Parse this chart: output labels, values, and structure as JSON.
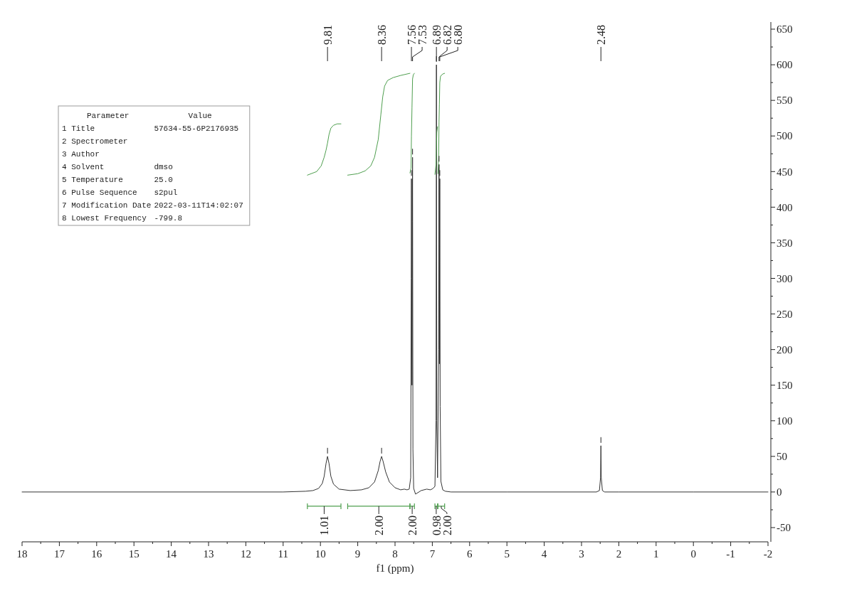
{
  "chart_data": [
    {
      "type": "line",
      "xlabel": "f1 (ppm)",
      "xlim": [
        18,
        -2
      ],
      "ylim": [
        -70,
        660
      ],
      "xticks": [
        18,
        {
          "value": 17.5,
          "label": null
        },
        17,
        {
          "value": 16.5,
          "label": null
        },
        16,
        {
          "value": 15.5,
          "label": null
        },
        15,
        {
          "value": 14.5,
          "label": null
        },
        14,
        {
          "value": 13.5,
          "label": null
        },
        13,
        {
          "value": 12.5,
          "label": null
        },
        12,
        {
          "value": 11.5,
          "label": null
        },
        11,
        {
          "value": 10.5,
          "label": null
        },
        10,
        {
          "value": 9.5,
          "label": null
        },
        9,
        {
          "value": 8.5,
          "label": null
        },
        8,
        {
          "value": 7.5,
          "label": null
        },
        7,
        {
          "value": 6.5,
          "label": null
        },
        6,
        {
          "value": 5.5,
          "label": null
        },
        5,
        {
          "value": 4.5,
          "label": null
        },
        4,
        {
          "value": 3.5,
          "label": null
        },
        3,
        {
          "value": 2.5,
          "label": null
        },
        2,
        {
          "value": 1.5,
          "label": null
        },
        1,
        {
          "value": 0.5,
          "label": null
        },
        0,
        {
          "value": -0.5,
          "label": null
        },
        -1,
        {
          "value": -1.5,
          "label": null
        },
        -2
      ],
      "yticks": [
        -50,
        {
          "value": -25,
          "label": null
        },
        0,
        {
          "value": 25,
          "label": null
        },
        50,
        {
          "value": 75,
          "label": null
        },
        100,
        {
          "value": 125,
          "label": null
        },
        150,
        {
          "value": 175,
          "label": null
        },
        200,
        {
          "value": 225,
          "label": null
        },
        250,
        {
          "value": 275,
          "label": null
        },
        300,
        {
          "value": 325,
          "label": null
        },
        350,
        {
          "value": 375,
          "label": null
        },
        400,
        {
          "value": 425,
          "label": null
        },
        450,
        {
          "value": 475,
          "label": null
        },
        500,
        {
          "value": 525,
          "label": null
        },
        550,
        {
          "value": 575,
          "label": null
        },
        600,
        {
          "value": 625,
          "label": null
        },
        650
      ],
      "series": [
        {
          "color": "#333333",
          "x": [
            18,
            11,
            10.4,
            10.2,
            10.05,
            9.95,
            9.9,
            9.85,
            9.81,
            9.77,
            9.72,
            9.65,
            9.5,
            9.2,
            8.9,
            8.7,
            8.55,
            8.45,
            8.4,
            8.36,
            8.32,
            8.25,
            8.15,
            8.0,
            7.85,
            7.75,
            7.68,
            7.62,
            7.58,
            7.565,
            7.56,
            7.545,
            7.535,
            7.53,
            7.52,
            7.5,
            7.45,
            7.3,
            7.15,
            7.05,
            6.98,
            6.93,
            6.9,
            6.89,
            6.88,
            6.86,
            6.83,
            6.82,
            6.81,
            6.8,
            6.79,
            6.77,
            6.72,
            6.65,
            6.5,
            5,
            3,
            2.6,
            2.52,
            2.49,
            2.48,
            2.47,
            2.44,
            2.38,
            2,
            0,
            -2
          ],
          "values": [
            0,
            0,
            1,
            2,
            5,
            12,
            22,
            40,
            50,
            40,
            22,
            11,
            4,
            2,
            3,
            6,
            14,
            30,
            43,
            50,
            43,
            28,
            14,
            6,
            3,
            4,
            3,
            4,
            20,
            300,
            440,
            150,
            380,
            470,
            60,
            5,
            -3,
            2,
            4,
            3,
            5,
            8,
            100,
            600,
            100,
            20,
            200,
            460,
            180,
            440,
            120,
            15,
            3,
            1,
            0,
            0,
            0,
            0,
            2,
            20,
            65,
            20,
            2,
            0,
            0,
            0,
            0
          ]
        },
        {
          "color": "#4f9f4f",
          "x": [
            10.35,
            10.1,
            9.98,
            9.9,
            9.85,
            9.81,
            9.77,
            9.72,
            9.65,
            9.55,
            9.45
          ],
          "values": [
            445,
            450,
            458,
            470,
            480,
            490,
            502,
            511,
            515,
            517,
            517
          ]
        },
        {
          "color": "#4f9f4f",
          "x": [
            9.27,
            9.0,
            8.8,
            8.65,
            8.55,
            8.45,
            8.38,
            8.33,
            8.28,
            8.2,
            8.05,
            7.85,
            7.6
          ],
          "values": [
            445,
            447,
            451,
            458,
            470,
            495,
            530,
            555,
            570,
            578,
            582,
            585,
            588
          ]
        },
        {
          "color": "#4f9f4f",
          "x": [
            7.6,
            7.57,
            7.56,
            7.545,
            7.53,
            7.51,
            7.48
          ],
          "values": [
            448,
            455,
            500,
            540,
            580,
            586,
            588
          ]
        },
        {
          "color": "#4f9f4f",
          "x": [
            6.93,
            6.9,
            6.89,
            6.88,
            6.86
          ],
          "values": [
            446,
            460,
            480,
            505,
            513
          ]
        },
        {
          "color": "#4f9f4f",
          "x": [
            6.85,
            6.83,
            6.82,
            6.81,
            6.8,
            6.78,
            6.72,
            6.67
          ],
          "values": [
            447,
            470,
            520,
            545,
            575,
            584,
            587,
            588
          ]
        }
      ],
      "annotations": [
        {
          "text": "9.81",
          "x": 9.81
        },
        {
          "text": "8.36",
          "x": 8.36
        },
        {
          "text": "7.56",
          "x": 7.56
        },
        {
          "text": "7.53",
          "x": 7.53
        },
        {
          "text": "6.89",
          "x": 6.89
        },
        {
          "text": "6.82",
          "x": 6.82
        },
        {
          "text": "6.80",
          "x": 6.8
        },
        {
          "text": "2.48",
          "x": 2.48
        },
        "1.01",
        "2.00",
        "2.00",
        "0.98",
        "2.00"
      ]
    },
    {
      "type": "other",
      "categories": [
        "Parameter",
        "Value"
      ],
      "cell_labels": [
        [
          "1 Title",
          "57634-55-6P2176935"
        ],
        [
          "2 Spectrometer",
          null
        ],
        [
          "3 Author",
          null
        ],
        [
          "4 Solvent",
          "dmso"
        ],
        [
          "5 Temperature",
          "25.0"
        ],
        [
          "6 Pulse Sequence",
          "s2pul"
        ],
        [
          "7 Modification Date",
          "2022-03-11T14:02:07"
        ],
        [
          "8 Lowest Frequency",
          "-799.8"
        ]
      ]
    }
  ]
}
